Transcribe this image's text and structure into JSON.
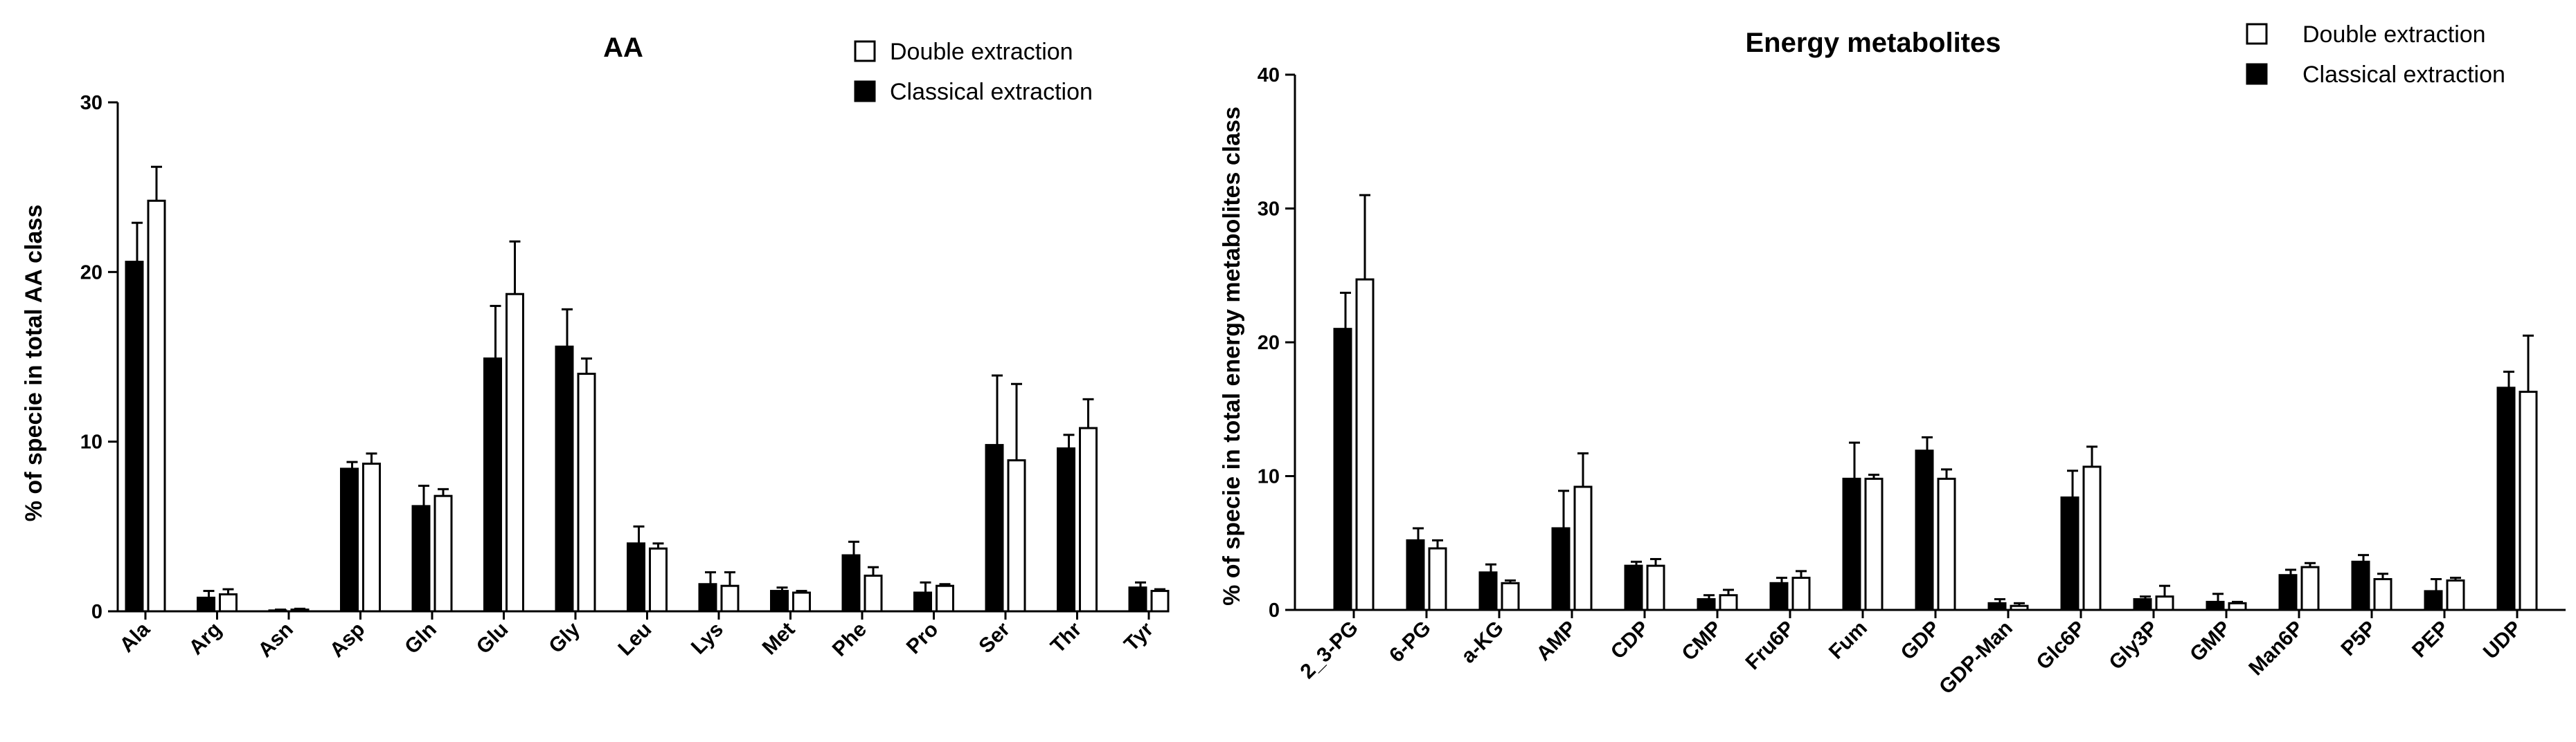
{
  "colors": {
    "classical": "#000000",
    "double": "#ffffff",
    "stroke": "#000000"
  },
  "chart_data": [
    {
      "type": "bar",
      "title": "AA",
      "xlabel": "",
      "ylabel": "% of specie in total AA class",
      "ylim": [
        0,
        30
      ],
      "yticks": [
        0,
        10,
        20,
        30
      ],
      "legend_position": "top-right",
      "categories": [
        "Ala",
        "Arg",
        "Asn",
        "Asp",
        "Gln",
        "Glu",
        "Gly",
        "Leu",
        "Lys",
        "Met",
        "Phe",
        "Pro",
        "Ser",
        "Thr",
        "Tyr"
      ],
      "series": [
        {
          "name": "Classical extraction",
          "values": [
            20.6,
            0.8,
            0.05,
            8.4,
            6.2,
            14.9,
            15.6,
            4.0,
            1.6,
            1.2,
            3.3,
            1.1,
            9.8,
            9.6,
            1.4
          ],
          "errors": [
            2.3,
            0.4,
            0.05,
            0.4,
            1.2,
            3.1,
            2.2,
            1.0,
            0.7,
            0.2,
            0.8,
            0.6,
            4.1,
            0.8,
            0.3
          ]
        },
        {
          "name": "Double extraction",
          "values": [
            24.2,
            1.0,
            0.1,
            8.7,
            6.8,
            18.7,
            14.0,
            3.7,
            1.5,
            1.1,
            2.1,
            1.5,
            8.9,
            10.8,
            1.2
          ],
          "errors": [
            2.0,
            0.3,
            0.05,
            0.6,
            0.4,
            3.1,
            0.9,
            0.3,
            0.8,
            0.1,
            0.5,
            0.1,
            4.5,
            1.7,
            0.1
          ]
        }
      ]
    },
    {
      "type": "bar",
      "title": "Energy metabolites",
      "xlabel": "",
      "ylabel": "% of specie in total energy metabolites class",
      "ylim": [
        0,
        40
      ],
      "yticks": [
        0,
        10,
        20,
        30,
        40
      ],
      "legend_position": "top-right",
      "categories": [
        "2_3-PG",
        "6-PG",
        "a-KG",
        "AMP",
        "CDP",
        "CMP",
        "Fru6P",
        "Fum",
        "GDP",
        "GDP-Man",
        "Glc6P",
        "Gly3P",
        "GMP",
        "Man6P",
        "P5P",
        "PEP",
        "UDP"
      ],
      "series": [
        {
          "name": "Classical extraction",
          "values": [
            21.0,
            5.2,
            2.8,
            6.1,
            3.3,
            0.8,
            2.0,
            9.8,
            11.9,
            0.5,
            8.4,
            0.8,
            0.6,
            2.6,
            3.6,
            1.4,
            16.6
          ],
          "errors": [
            2.7,
            0.9,
            0.6,
            2.8,
            0.3,
            0.3,
            0.4,
            2.7,
            1.0,
            0.3,
            2.0,
            0.2,
            0.6,
            0.4,
            0.5,
            0.9,
            1.2
          ]
        },
        {
          "name": "Double extraction",
          "values": [
            24.7,
            4.6,
            2.0,
            9.2,
            3.3,
            1.1,
            2.4,
            9.8,
            9.8,
            0.3,
            10.7,
            1.0,
            0.5,
            3.2,
            2.3,
            2.2,
            16.3
          ],
          "errors": [
            6.3,
            0.6,
            0.2,
            2.5,
            0.5,
            0.4,
            0.5,
            0.3,
            0.7,
            0.2,
            1.5,
            0.8,
            0.1,
            0.3,
            0.4,
            0.2,
            4.2
          ]
        }
      ]
    }
  ]
}
